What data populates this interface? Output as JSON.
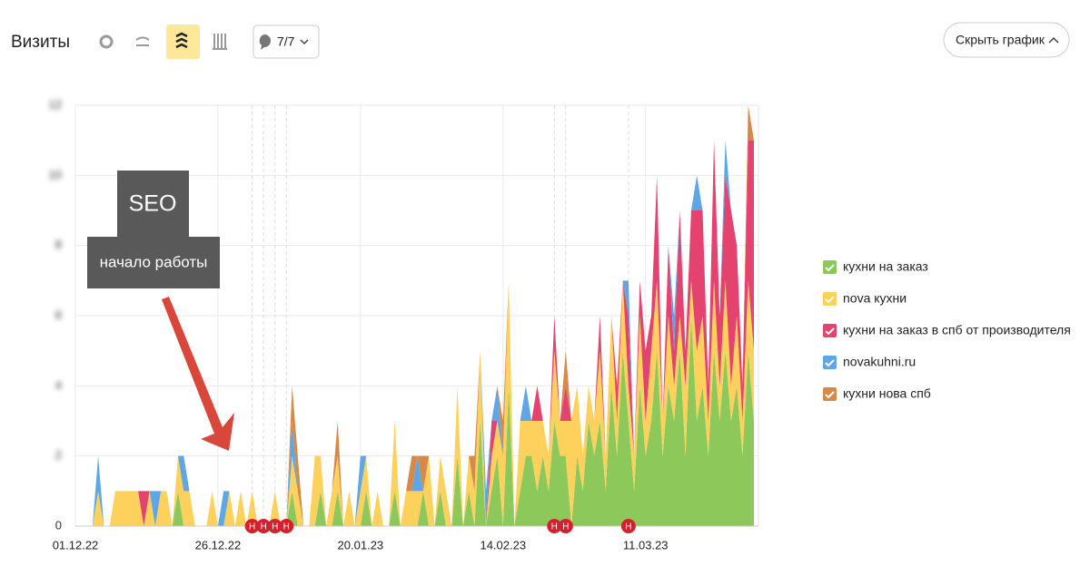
{
  "header": {
    "title": "Визиты",
    "filter": "7/7",
    "hide_button": "Скрыть график"
  },
  "chart_data": {
    "type": "stacked_area",
    "annotation": {
      "title": "SEO",
      "text": "начало работы"
    },
    "categories": [
      "01.12.22",
      null,
      null,
      null,
      null,
      null,
      null,
      null,
      null,
      null,
      null,
      null,
      null,
      null,
      null,
      null,
      null,
      null,
      null,
      null,
      null,
      null,
      null,
      null,
      null,
      "26.12.22",
      null,
      null,
      null,
      null,
      null,
      null,
      null,
      null,
      null,
      null,
      null,
      null,
      null,
      null,
      null,
      null,
      null,
      null,
      null,
      null,
      null,
      null,
      null,
      null,
      "20.01.23",
      null,
      null,
      null,
      null,
      null,
      null,
      null,
      null,
      null,
      null,
      null,
      null,
      null,
      null,
      null,
      null,
      null,
      null,
      null,
      null,
      null,
      null,
      null,
      null,
      "14.02.23",
      null,
      null,
      null,
      null,
      null,
      null,
      null,
      null,
      null,
      null,
      null,
      null,
      null,
      null,
      null,
      null,
      null,
      null,
      null,
      null,
      null,
      null,
      null,
      null,
      "11.03.23",
      null,
      null,
      null,
      null,
      null,
      null,
      null,
      null,
      null,
      null,
      null,
      null,
      null,
      null,
      null,
      null,
      null,
      null,
      null
    ],
    "ylim": [
      0,
      12
    ],
    "yticks": [
      0,
      2,
      4,
      6,
      8,
      10,
      12
    ],
    "grid": true,
    "events": [
      {
        "index": 31,
        "label": "Н"
      },
      {
        "index": 33,
        "label": "Н"
      },
      {
        "index": 35,
        "label": "Н"
      },
      {
        "index": 37,
        "label": "Н"
      },
      {
        "index": 84,
        "label": "Н"
      },
      {
        "index": 86,
        "label": "Н"
      },
      {
        "index": 97,
        "label": "Н"
      }
    ],
    "series": [
      {
        "name": "кухни на заказ",
        "color": "#8dc85a",
        "values": [
          0,
          0,
          0,
          0,
          0,
          0,
          0,
          0,
          0,
          0,
          0,
          0,
          0,
          0,
          0,
          0,
          0,
          0,
          1,
          0,
          0,
          0,
          0,
          0,
          0,
          0,
          0,
          0,
          0,
          0,
          0,
          0,
          0,
          0,
          0,
          0,
          0,
          0,
          1,
          0,
          0,
          0,
          0,
          1,
          0,
          0,
          1,
          0,
          0,
          0,
          0,
          1,
          0,
          0,
          0,
          0,
          1,
          0,
          0,
          0,
          0,
          1,
          0,
          0,
          1,
          0,
          0,
          2,
          0,
          1,
          0,
          3,
          0,
          1,
          2,
          0,
          4,
          0,
          1,
          2,
          2,
          1,
          2,
          1,
          3,
          2,
          2,
          0,
          2,
          1,
          3,
          2,
          3,
          1,
          4,
          2,
          5,
          3,
          1,
          4,
          2,
          3,
          5,
          2,
          4,
          3,
          5,
          2,
          6,
          3,
          4,
          2,
          5,
          3,
          5,
          3,
          4,
          2,
          5,
          3
        ]
      },
      {
        "name": "nova кухни",
        "color": "#fdd15c",
        "values": [
          0,
          0,
          0,
          0,
          1,
          0,
          0,
          1,
          1,
          1,
          1,
          1,
          0,
          1,
          0,
          1,
          1,
          0,
          1,
          1,
          1,
          0,
          0,
          0,
          1,
          0,
          0,
          1,
          0,
          1,
          0,
          1,
          0,
          0,
          0,
          1,
          0,
          0,
          1,
          1,
          0,
          0,
          2,
          1,
          0,
          1,
          1,
          0,
          1,
          0,
          1,
          1,
          0,
          1,
          0,
          0,
          2,
          0,
          1,
          1,
          1,
          0,
          2,
          0,
          1,
          1,
          0,
          2,
          0,
          1,
          1,
          2,
          0,
          1,
          1,
          2,
          3,
          0,
          2,
          1,
          1,
          2,
          1,
          1,
          2,
          1,
          1,
          3,
          2,
          1,
          1,
          1,
          2,
          1,
          2,
          1,
          2,
          1,
          1,
          2,
          1,
          2,
          2,
          1,
          2,
          1,
          1,
          2,
          1,
          2,
          2,
          1,
          2,
          1,
          2,
          1,
          2,
          1,
          2,
          2
        ]
      },
      {
        "name": "кухни на заказ в спб от производителя",
        "color": "#e5436f",
        "values": [
          0,
          0,
          0,
          0,
          0,
          0,
          0,
          0,
          0,
          0,
          0,
          0,
          1,
          0,
          0,
          0,
          0,
          0,
          0,
          0,
          0,
          0,
          0,
          0,
          0,
          0,
          0,
          0,
          0,
          0,
          0,
          0,
          0,
          0,
          0,
          0,
          0,
          0,
          0,
          0,
          0,
          0,
          0,
          0,
          0,
          0,
          0,
          0,
          0,
          0,
          0,
          0,
          0,
          0,
          0,
          0,
          0,
          0,
          0,
          0,
          0,
          0,
          0,
          0,
          0,
          0,
          0,
          0,
          0,
          0,
          0,
          0,
          0,
          1,
          0,
          0,
          0,
          0,
          0,
          0,
          0,
          1,
          0,
          0,
          1,
          0,
          1,
          0,
          0,
          0,
          0,
          0,
          1,
          0,
          0,
          1,
          0,
          2,
          0,
          1,
          2,
          1,
          3,
          0,
          2,
          1,
          3,
          1,
          2,
          4,
          3,
          1,
          4,
          2,
          3,
          5,
          2,
          1,
          4,
          6
        ]
      },
      {
        "name": "novakuhni.ru",
        "color": "#5fa6e6",
        "values": [
          0,
          0,
          0,
          0,
          1,
          0,
          0,
          0,
          0,
          0,
          0,
          0,
          0,
          0,
          1,
          0,
          0,
          0,
          0,
          1,
          0,
          0,
          0,
          0,
          0,
          0,
          1,
          0,
          0,
          0,
          0,
          0,
          0,
          0,
          0,
          0,
          0,
          0,
          1,
          0,
          0,
          0,
          0,
          0,
          0,
          0,
          0,
          0,
          0,
          0,
          1,
          0,
          0,
          0,
          0,
          0,
          0,
          0,
          0,
          0,
          1,
          0,
          0,
          0,
          0,
          0,
          0,
          0,
          0,
          0,
          0,
          0,
          1,
          0,
          1,
          0,
          0,
          0,
          0,
          1,
          0,
          0,
          0,
          0,
          0,
          0,
          0,
          0,
          0,
          0,
          0,
          0,
          0,
          0,
          0,
          0,
          0,
          1,
          0,
          0,
          0,
          0,
          0,
          0,
          0,
          1,
          0,
          0,
          0,
          1,
          0,
          0,
          0,
          0,
          1,
          0,
          0,
          0,
          0,
          0
        ]
      },
      {
        "name": "кухни нова спб",
        "color": "#d58a4a",
        "values": [
          0,
          0,
          0,
          0,
          0,
          0,
          0,
          0,
          0,
          0,
          0,
          0,
          0,
          0,
          0,
          0,
          0,
          0,
          0,
          0,
          0,
          0,
          0,
          0,
          0,
          0,
          0,
          0,
          0,
          0,
          0,
          0,
          0,
          0,
          0,
          0,
          0,
          0,
          1,
          1,
          0,
          0,
          0,
          0,
          0,
          0,
          1,
          0,
          0,
          0,
          0,
          0,
          0,
          0,
          0,
          0,
          0,
          0,
          0,
          1,
          0,
          1,
          0,
          0,
          0,
          0,
          0,
          0,
          0,
          0,
          1,
          0,
          0,
          0,
          0,
          1,
          0,
          0,
          0,
          0,
          0,
          0,
          0,
          0,
          0,
          0,
          1,
          0,
          0,
          0,
          0,
          0,
          0,
          0,
          0,
          0,
          0,
          0,
          0,
          0,
          0,
          0,
          0,
          0,
          0,
          0,
          0,
          0,
          0,
          0,
          0,
          0,
          0,
          0,
          0,
          0,
          0,
          0,
          1,
          0
        ]
      }
    ]
  }
}
